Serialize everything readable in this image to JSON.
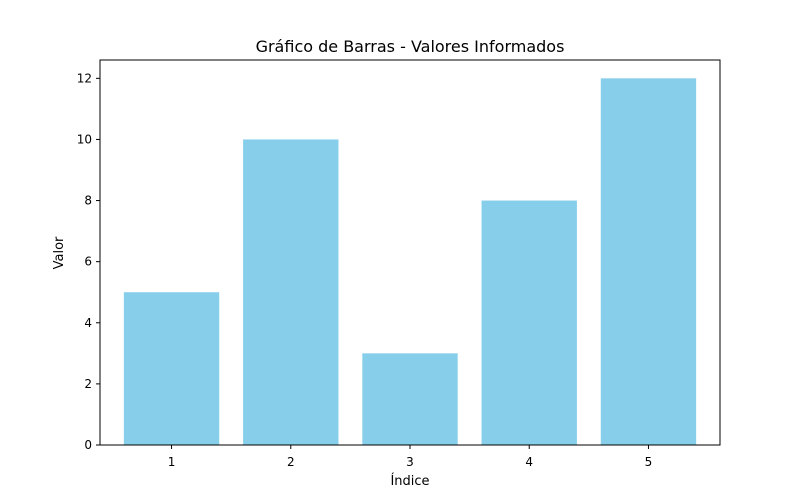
{
  "chart_data": {
    "type": "bar",
    "title": "Gráfico de Barras - Valores Informados",
    "xlabel": "Índice",
    "ylabel": "Valor",
    "categories": [
      "1",
      "2",
      "3",
      "4",
      "5"
    ],
    "values": [
      5,
      10,
      3,
      8,
      12
    ],
    "ylim": [
      0,
      12.6
    ],
    "yticks": [
      0,
      2,
      4,
      6,
      8,
      10,
      12
    ],
    "bar_color": "#87CEEB",
    "grid": false,
    "legend": "none"
  }
}
